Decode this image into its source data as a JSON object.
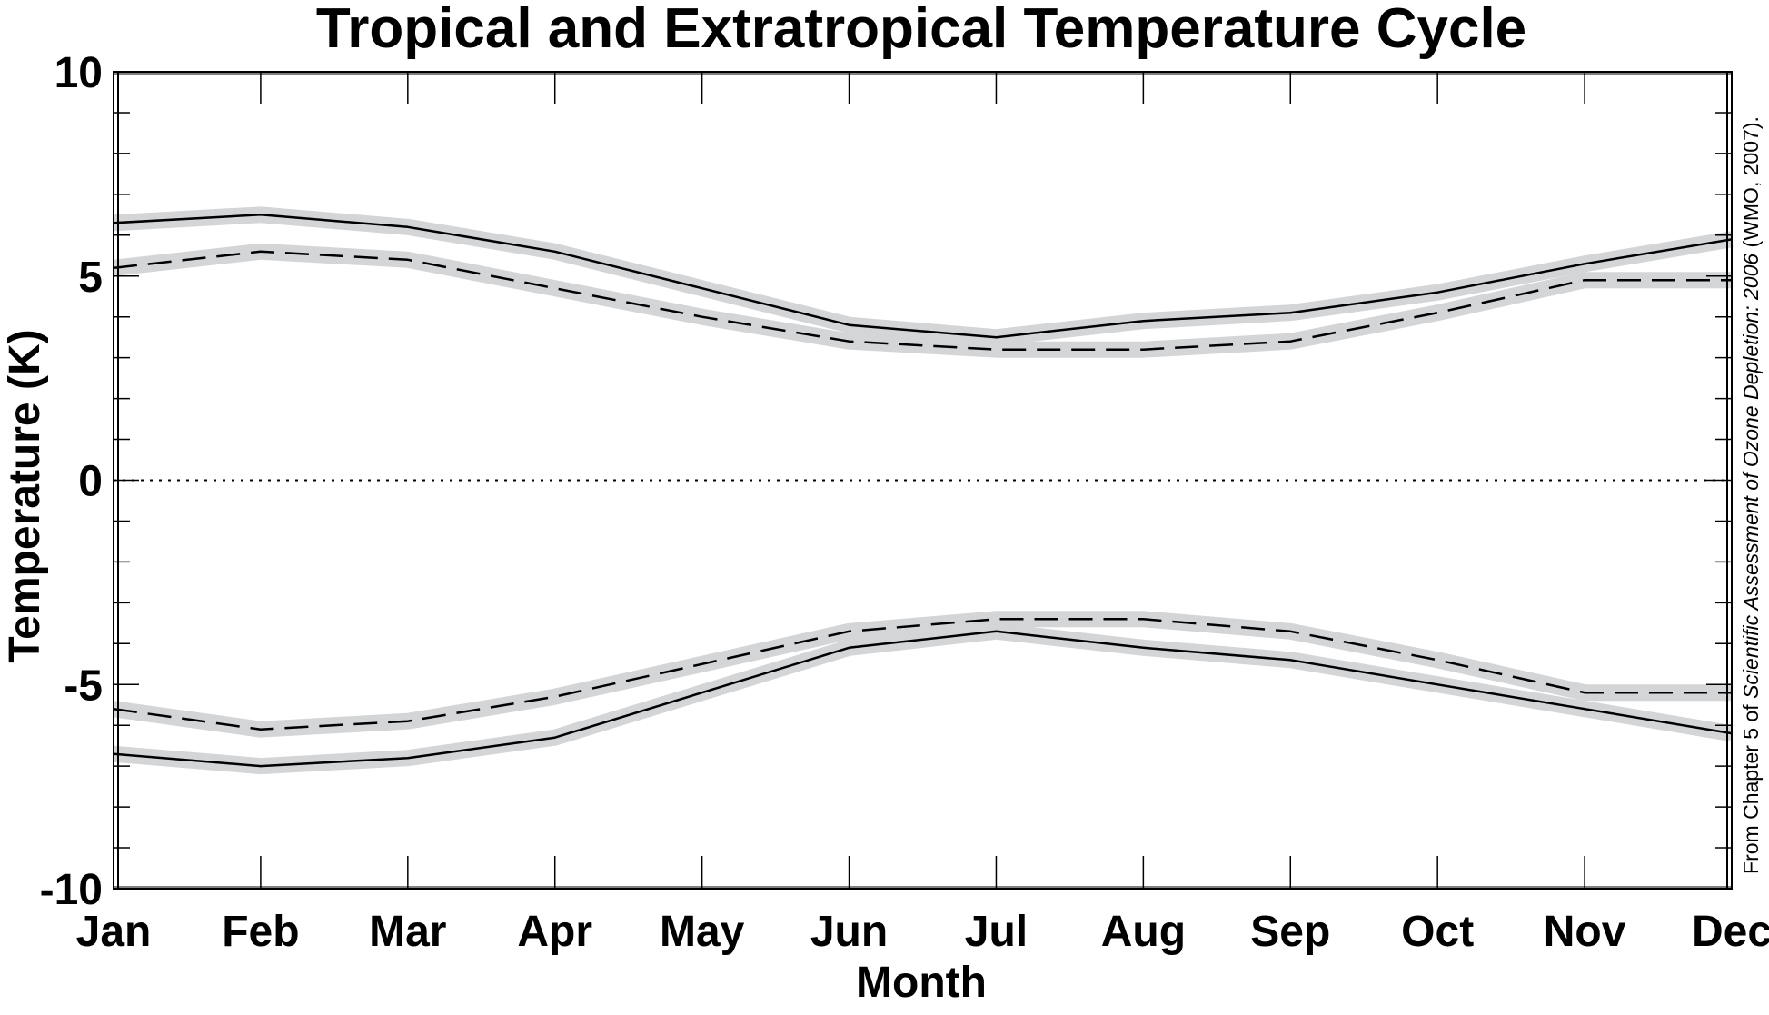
{
  "chart_data": {
    "type": "line",
    "title": "Tropical and Extratropical Temperature Cycle",
    "xlabel": "Month",
    "ylabel": "Temperature (K)",
    "categories": [
      "Jan",
      "Feb",
      "Mar",
      "Apr",
      "May",
      "Jun",
      "Jul",
      "Aug",
      "Sep",
      "Oct",
      "Nov",
      "Dec"
    ],
    "ylim": [
      -10,
      10
    ],
    "yticks": [
      -10,
      -5,
      0,
      5,
      10
    ],
    "ytick_labels": [
      "-10",
      "-5",
      "0",
      "5",
      "10"
    ],
    "zero_line": "dotted",
    "grid": false,
    "series": [
      {
        "style": "solid",
        "band": true,
        "values": [
          6.3,
          6.5,
          6.2,
          5.6,
          4.7,
          3.8,
          3.5,
          3.9,
          4.1,
          4.6,
          5.3,
          5.9
        ]
      },
      {
        "style": "dashed",
        "band": true,
        "values": [
          5.2,
          5.6,
          5.4,
          4.7,
          4.0,
          3.4,
          3.2,
          3.2,
          3.4,
          4.1,
          4.9,
          4.9
        ]
      },
      {
        "style": "solid",
        "band": true,
        "values": [
          -6.7,
          -7.0,
          -6.8,
          -6.3,
          -5.2,
          -4.1,
          -3.7,
          -4.1,
          -4.4,
          -5.0,
          -5.6,
          -6.2
        ]
      },
      {
        "style": "dashed",
        "band": true,
        "values": [
          -5.6,
          -6.1,
          -5.9,
          -5.3,
          -4.5,
          -3.7,
          -3.4,
          -3.4,
          -3.7,
          -4.4,
          -5.2,
          -5.2
        ]
      }
    ],
    "colors": {
      "line": "#000000",
      "band": "#d4d5d7",
      "axis": "#000000"
    }
  },
  "credit": {
    "prefix": "From Chapter 5 of ",
    "italic": "Scientific Assessment of Ozone Depletion: 2006",
    "suffix": " (WMO, 2007)."
  }
}
